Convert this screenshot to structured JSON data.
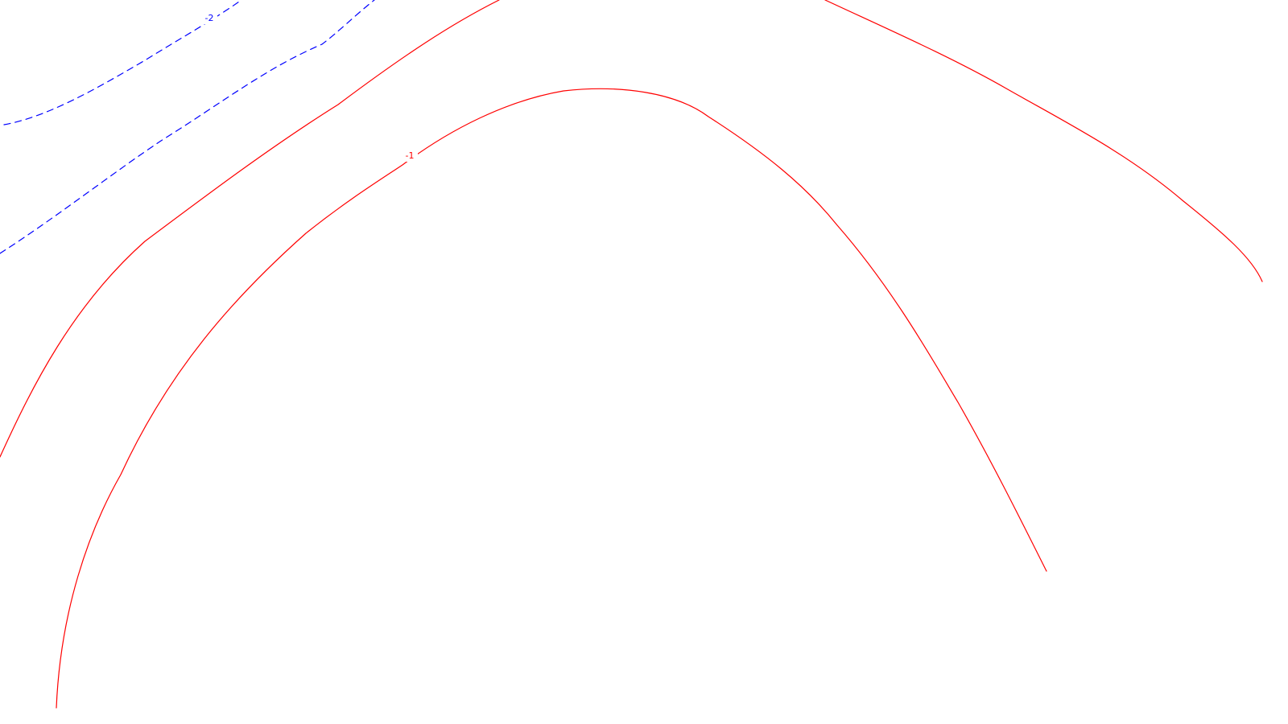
{
  "map": {
    "background_color": "#ffffff",
    "contours": [
      {
        "id": "outer-solid",
        "color": "#ff0000",
        "style": "solid",
        "label": ""
      },
      {
        "id": "inner-solid",
        "color": "#ff0000",
        "style": "solid",
        "label": "-1"
      },
      {
        "id": "upper-dashed",
        "color": "#0000ff",
        "style": "dashed",
        "label": "-2"
      },
      {
        "id": "lower-dashed",
        "color": "#0000ff",
        "style": "dashed",
        "label": ""
      }
    ]
  }
}
